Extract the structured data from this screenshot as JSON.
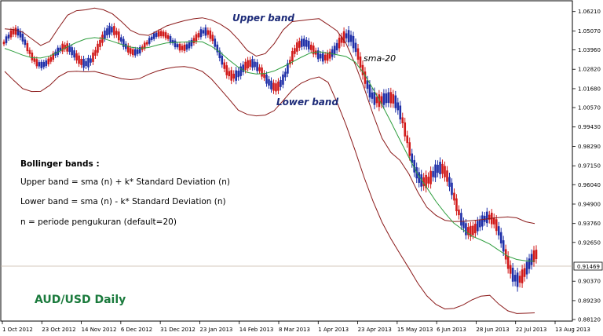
{
  "chart_data": {
    "type": "candlestick",
    "title": "AUD/USD Daily",
    "y_ticks": [
      "1.06210",
      "1.05070",
      "1.03960",
      "1.02820",
      "1.01680",
      "1.00570",
      "0.99430",
      "0.98290",
      "0.97150",
      "0.96040",
      "0.94900",
      "0.93760",
      "0.92650",
      "0.91469",
      "0.90370",
      "0.89230",
      "0.88120"
    ],
    "y_tick_values": [
      1.0621,
      1.0507,
      1.0396,
      1.0282,
      1.0168,
      1.0057,
      0.9943,
      0.9829,
      0.9715,
      0.9604,
      0.949,
      0.9376,
      0.9265,
      0.91469,
      0.9037,
      0.8923,
      0.8812
    ],
    "ylim": [
      0.8812,
      1.0675
    ],
    "x_ticks": [
      "1 Oct 2012",
      "23 Oct 2012",
      "14 Nov 2012",
      "6 Dec 2012",
      "31 Dec 2012",
      "23 Jan 2013",
      "14 Feb 2013",
      "8 Mar 2013",
      "1 Apr 2013",
      "23 Apr 2013",
      "15 May 2013",
      "6 Jun 2013",
      "28 Jun 2013",
      "22 Jul 2013",
      "13 Aug 2013"
    ],
    "current_price": "0.91469",
    "series": [
      {
        "name": "Upper band",
        "color": "#8b1a1a"
      },
      {
        "name": "sma-20",
        "color": "#2e9e3e"
      },
      {
        "name": "Lower band",
        "color": "#8b1a1a"
      }
    ],
    "sma_y": [
      1.0405,
      1.0386,
      1.0365,
      1.035,
      1.0348,
      1.036,
      1.0385,
      1.0415,
      1.044,
      1.046,
      1.0468,
      1.0462,
      1.0446,
      1.0428,
      1.0412,
      1.0405,
      1.041,
      1.0424,
      1.0436,
      1.044,
      1.0442,
      1.0446,
      1.0443,
      1.0417,
      1.0381,
      1.0335,
      1.0294,
      1.0263,
      1.0254,
      1.0257,
      1.0272,
      1.0297,
      1.0324,
      1.0352,
      1.0377,
      1.0385,
      1.0377,
      1.0367,
      1.0357,
      1.0325,
      1.0257,
      1.0167,
      1.0073,
      0.9972,
      0.9866,
      0.9764,
      0.9662,
      0.9586,
      0.9506,
      0.9438,
      0.9378,
      0.934,
      0.9302,
      0.928,
      0.9255,
      0.9219,
      0.9184,
      0.9165,
      0.9157,
      0.9154
    ],
    "upper_y": [
      1.0519,
      1.0515,
      1.05,
      1.0461,
      1.0422,
      1.0446,
      1.0525,
      1.06,
      1.0626,
      1.0631,
      1.0642,
      1.0631,
      1.0607,
      1.0562,
      1.0511,
      1.0487,
      1.0481,
      1.0507,
      1.0536,
      1.0553,
      1.0567,
      1.0578,
      1.0584,
      1.0572,
      1.0547,
      1.0512,
      1.0457,
      1.0393,
      1.0359,
      1.0374,
      1.0432,
      1.0513,
      1.0562,
      1.0568,
      1.0575,
      1.0579,
      1.0544,
      1.0507,
      1.0434,
      1.0313,
      1.0174,
      1.0018,
      0.9877,
      0.9793,
      0.9747,
      0.9667,
      0.9559,
      0.9471,
      0.9424,
      0.9395,
      0.9387,
      0.9389,
      0.9393,
      0.9398,
      0.9405,
      0.9411,
      0.9415,
      0.9409,
      0.9386,
      0.9376
    ],
    "lower_y": [
      1.0269,
      1.0217,
      1.0168,
      1.0151,
      1.0152,
      1.0187,
      1.0238,
      1.0267,
      1.027,
      1.0267,
      1.0269,
      1.0256,
      1.0241,
      1.0227,
      1.0221,
      1.0227,
      1.0252,
      1.0272,
      1.0286,
      1.0295,
      1.0298,
      1.0289,
      1.0269,
      1.0226,
      1.0166,
      1.0105,
      1.0042,
      1.0017,
      1.0008,
      1.0013,
      1.0039,
      1.0098,
      1.0159,
      1.02,
      1.0224,
      1.0237,
      1.0205,
      1.0087,
      0.9955,
      0.9806,
      0.9649,
      0.9507,
      0.9384,
      0.9286,
      0.9198,
      0.9113,
      0.9024,
      0.8951,
      0.8901,
      0.8874,
      0.8877,
      0.8897,
      0.8927,
      0.8949,
      0.8954,
      0.8903,
      0.8863,
      0.8847,
      0.8849,
      0.8851
    ]
  },
  "annotations": {
    "upper_band_label": "Upper band",
    "lower_band_label": "Lower band",
    "sma_label": "sma-20"
  },
  "notes": {
    "title": "Bollinger bands :",
    "line1": "Upper band = sma (n) + k* Standard Deviation (n)",
    "line2": "Lower band = sma (n) - k* Standard Deviation (n)",
    "line3": "n = periode pengukuran (default=20)"
  },
  "colors": {
    "bull": "#1f2fa8",
    "bear": "#d11a1a",
    "band": "#8b1a1a",
    "sma": "#2e9e3e",
    "pair_label": "#1a7a3c"
  }
}
